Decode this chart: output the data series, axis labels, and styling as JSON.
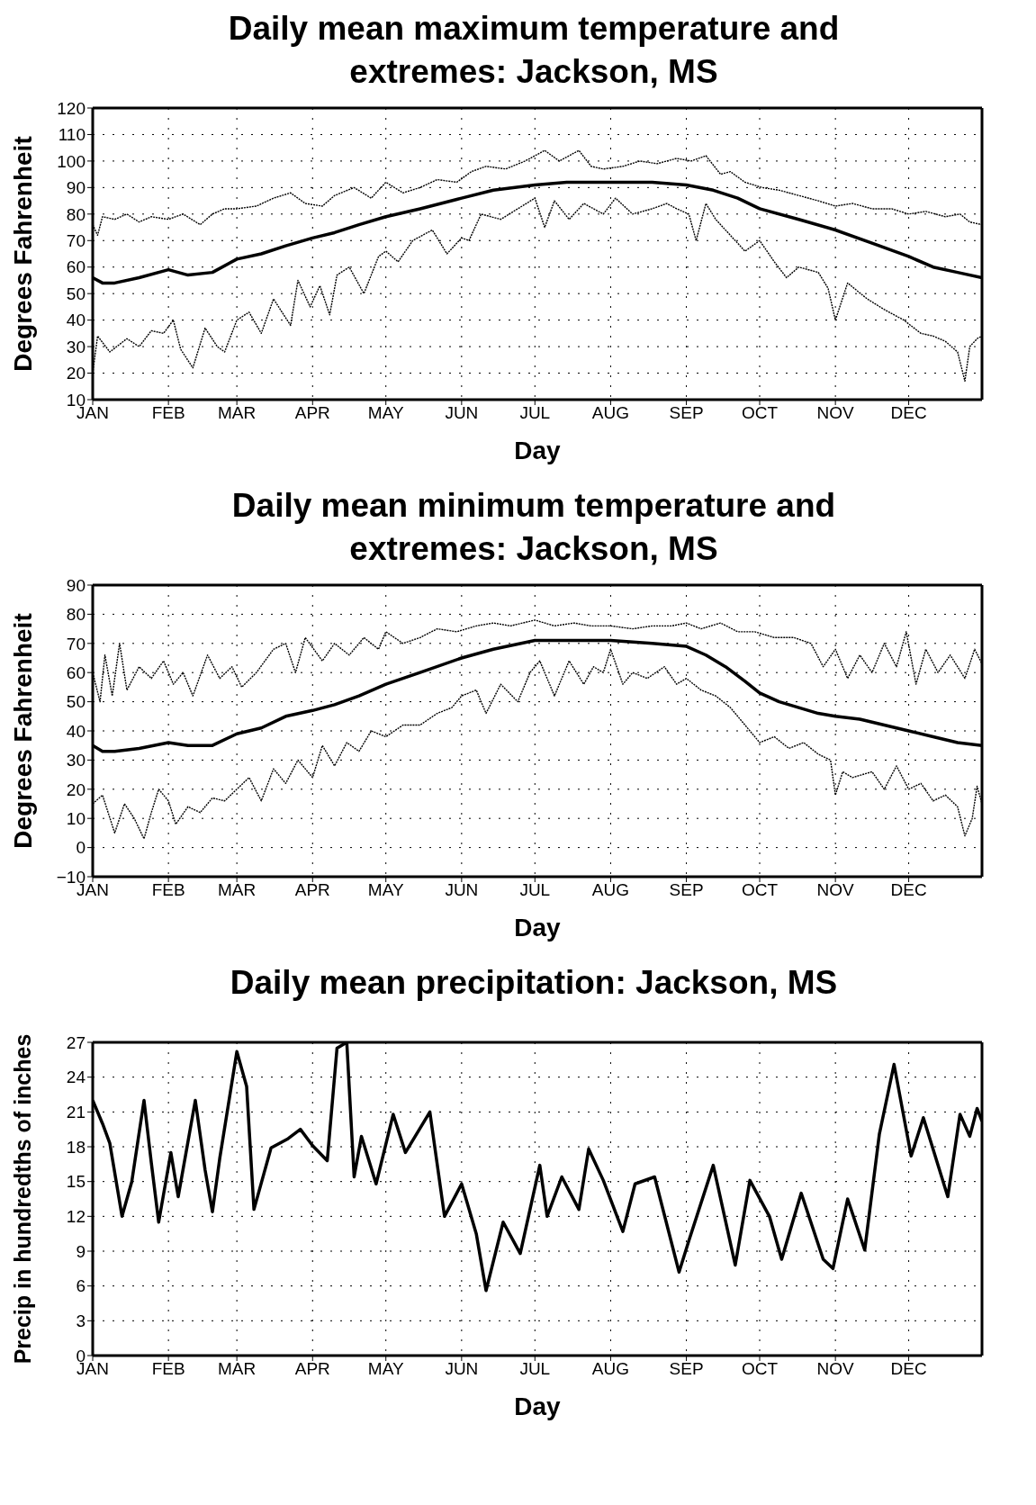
{
  "chart_data": [
    {
      "type": "line",
      "title": "Daily mean maximum temperature and extremes: Jackson, MS",
      "xlabel": "Day",
      "ylabel": "Degrees Fahrenheit",
      "xlim": [
        "--01-01",
        "--12-31"
      ],
      "ylim": [
        10,
        120
      ],
      "grid": true,
      "xticks": [
        {
          "value": "--01-01",
          "label": "JAN"
        },
        {
          "value": "--02-01",
          "label": "FEB"
        },
        {
          "value": "--03-01",
          "label": "MAR"
        },
        {
          "value": "--04-01",
          "label": "APR"
        },
        {
          "value": "--05-01",
          "label": "MAY"
        },
        {
          "value": "--06-01",
          "label": "JUN"
        },
        {
          "value": "--07-01",
          "label": "JUL"
        },
        {
          "value": "--08-01",
          "label": "AUG"
        },
        {
          "value": "--09-01",
          "label": "SEP"
        },
        {
          "value": "--10-01",
          "label": "OCT"
        },
        {
          "value": "--11-01",
          "label": "NOV"
        },
        {
          "value": "--12-01",
          "label": "DEC"
        }
      ],
      "yticks": [
        10,
        20,
        30,
        40,
        50,
        60,
        70,
        80,
        90,
        100,
        110,
        120
      ],
      "series": [
        {
          "color": "#000000",
          "line_style": "dotted",
          "x": [
            "--01-01",
            "--01-03",
            "--01-05",
            "--01-10",
            "--01-15",
            "--01-20",
            "--01-25",
            "--02-01",
            "--02-07",
            "--02-14",
            "--02-19",
            "--02-24",
            "--03-01",
            "--03-09",
            "--03-16",
            "--03-23",
            "--03-29",
            "--04-05",
            "--04-10",
            "--04-18",
            "--04-25",
            "--05-01",
            "--05-08",
            "--05-15",
            "--05-22",
            "--05-30",
            "--06-05",
            "--06-11",
            "--06-19",
            "--06-27",
            "--07-01",
            "--07-05",
            "--07-11",
            "--07-19",
            "--07-24",
            "--07-29",
            "--08-06",
            "--08-13",
            "--08-20",
            "--08-28",
            "--09-03",
            "--09-09",
            "--09-15",
            "--09-19",
            "--09-25",
            "--10-02",
            "--10-09",
            "--10-17",
            "--10-25",
            "--11-01",
            "--11-08",
            "--11-16",
            "--11-24",
            "--12-01",
            "--12-08",
            "--12-16",
            "--12-22",
            "--12-26",
            "--12-31"
          ],
          "values": [
            76,
            72,
            79,
            78,
            80,
            77,
            79,
            78,
            80,
            76,
            80,
            82,
            82,
            83,
            86,
            88,
            84,
            83,
            87,
            90,
            86,
            92,
            88,
            90,
            93,
            92,
            96,
            98,
            97,
            100,
            102,
            104,
            100,
            104,
            98,
            97,
            98,
            100,
            99,
            101,
            100,
            102,
            95,
            96,
            92,
            90,
            89,
            87,
            85,
            83,
            84,
            82,
            82,
            80,
            81,
            79,
            80,
            77,
            76
          ]
        },
        {
          "color": "#000000",
          "line_style": "solid",
          "x": [
            "--01-01",
            "--01-05",
            "--01-10",
            "--01-20",
            "--02-01",
            "--02-09",
            "--02-19",
            "--03-01",
            "--03-11",
            "--03-21",
            "--04-01",
            "--04-10",
            "--04-20",
            "--05-01",
            "--05-15",
            "--06-01",
            "--06-14",
            "--07-01",
            "--07-14",
            "--08-01",
            "--08-18",
            "--09-01",
            "--09-12",
            "--09-22",
            "--10-01",
            "--10-17",
            "--11-01",
            "--11-16",
            "--12-01",
            "--12-11",
            "--12-21",
            "--12-31"
          ],
          "values": [
            56,
            54,
            54,
            56,
            59,
            57,
            58,
            63,
            65,
            68,
            71,
            73,
            76,
            79,
            82,
            86,
            89,
            91,
            92,
            92,
            92,
            91,
            89,
            86,
            82,
            78,
            74,
            69,
            64,
            60,
            58,
            56
          ]
        },
        {
          "color": "#000000",
          "line_style": "dotted",
          "x": [
            "--01-01",
            "--01-03",
            "--01-08",
            "--01-15",
            "--01-20",
            "--01-25",
            "--01-30",
            "--02-03",
            "--02-06",
            "--02-11",
            "--02-16",
            "--02-21",
            "--02-24",
            "--03-01",
            "--03-06",
            "--03-11",
            "--03-16",
            "--03-23",
            "--03-26",
            "--03-31",
            "--04-04",
            "--04-08",
            "--04-11",
            "--04-16",
            "--04-22",
            "--04-28",
            "--05-01",
            "--05-06",
            "--05-12",
            "--05-20",
            "--05-26",
            "--06-01",
            "--06-04",
            "--06-09",
            "--06-17",
            "--06-24",
            "--07-01",
            "--07-05",
            "--07-09",
            "--07-15",
            "--07-21",
            "--07-29",
            "--08-03",
            "--08-10",
            "--08-18",
            "--08-24",
            "--08-28",
            "--09-02",
            "--09-05",
            "--09-09",
            "--09-13",
            "--09-19",
            "--09-25",
            "--10-01",
            "--10-07",
            "--10-12",
            "--10-17",
            "--10-25",
            "--10-29",
            "--11-01",
            "--11-06",
            "--11-14",
            "--11-21",
            "--11-29",
            "--12-06",
            "--12-11",
            "--12-16",
            "--12-21",
            "--12-24",
            "--12-26",
            "--12-29",
            "--12-31"
          ],
          "values": [
            20,
            34,
            28,
            33,
            30,
            36,
            35,
            40,
            29,
            22,
            37,
            30,
            28,
            40,
            43,
            35,
            48,
            38,
            55,
            45,
            53,
            42,
            57,
            60,
            50,
            64,
            66,
            62,
            70,
            74,
            65,
            71,
            70,
            80,
            78,
            82,
            86,
            75,
            85,
            78,
            84,
            80,
            86,
            80,
            82,
            84,
            82,
            80,
            70,
            84,
            78,
            72,
            66,
            70,
            62,
            56,
            60,
            58,
            52,
            40,
            54,
            48,
            44,
            40,
            35,
            34,
            32,
            28,
            17,
            30,
            33,
            34
          ]
        }
      ]
    },
    {
      "type": "line",
      "title": "Daily mean minimum temperature and extremes: Jackson, MS",
      "xlabel": "Day",
      "ylabel": "Degrees Fahrenheit",
      "xlim": [
        "--01-01",
        "--12-31"
      ],
      "ylim": [
        -10,
        90
      ],
      "grid": true,
      "xticks": [
        {
          "value": "--01-01",
          "label": "JAN"
        },
        {
          "value": "--02-01",
          "label": "FEB"
        },
        {
          "value": "--03-01",
          "label": "MAR"
        },
        {
          "value": "--04-01",
          "label": "APR"
        },
        {
          "value": "--05-01",
          "label": "MAY"
        },
        {
          "value": "--06-01",
          "label": "JUN"
        },
        {
          "value": "--07-01",
          "label": "JUL"
        },
        {
          "value": "--08-01",
          "label": "AUG"
        },
        {
          "value": "--09-01",
          "label": "SEP"
        },
        {
          "value": "--10-01",
          "label": "OCT"
        },
        {
          "value": "--11-01",
          "label": "NOV"
        },
        {
          "value": "--12-01",
          "label": "DEC"
        }
      ],
      "yticks": [
        {
          "value": -10,
          "label": "−10"
        },
        0,
        10,
        20,
        30,
        40,
        50,
        60,
        70,
        80,
        90
      ],
      "series": [
        {
          "color": "#000000",
          "line_style": "dotted",
          "x": [
            "--01-01",
            "--01-04",
            "--01-06",
            "--01-09",
            "--01-12",
            "--01-15",
            "--01-20",
            "--01-25",
            "--01-30",
            "--02-03",
            "--02-07",
            "--02-11",
            "--02-17",
            "--02-22",
            "--02-27",
            "--03-03",
            "--03-09",
            "--03-16",
            "--03-21",
            "--03-25",
            "--03-29",
            "--04-05",
            "--04-10",
            "--04-16",
            "--04-22",
            "--04-28",
            "--05-01",
            "--05-08",
            "--05-15",
            "--05-22",
            "--05-30",
            "--06-07",
            "--06-14",
            "--06-21",
            "--07-01",
            "--07-09",
            "--07-17",
            "--07-24",
            "--08-01",
            "--08-10",
            "--08-18",
            "--08-26",
            "--09-01",
            "--09-07",
            "--09-15",
            "--09-22",
            "--09-29",
            "--10-07",
            "--10-15",
            "--10-22",
            "--10-27",
            "--11-01",
            "--11-06",
            "--11-11",
            "--11-16",
            "--11-21",
            "--11-26",
            "--11-30",
            "--12-04",
            "--12-08",
            "--12-13",
            "--12-18",
            "--12-24",
            "--12-28",
            "--12-31"
          ],
          "values": [
            60,
            50,
            66,
            52,
            70,
            54,
            62,
            58,
            64,
            56,
            60,
            52,
            66,
            58,
            62,
            55,
            60,
            68,
            70,
            60,
            72,
            64,
            70,
            66,
            72,
            68,
            74,
            70,
            72,
            75,
            74,
            76,
            77,
            76,
            78,
            76,
            77,
            76,
            76,
            75,
            76,
            76,
            77,
            75,
            77,
            74,
            74,
            72,
            72,
            70,
            62,
            68,
            58,
            66,
            60,
            70,
            62,
            74,
            56,
            68,
            60,
            66,
            58,
            68,
            63
          ]
        },
        {
          "color": "#000000",
          "line_style": "solid",
          "x": [
            "--01-01",
            "--01-05",
            "--01-10",
            "--01-20",
            "--02-01",
            "--02-09",
            "--02-19",
            "--03-01",
            "--03-11",
            "--03-21",
            "--04-01",
            "--04-10",
            "--04-20",
            "--05-01",
            "--05-15",
            "--06-01",
            "--06-14",
            "--07-01",
            "--07-14",
            "--08-01",
            "--08-18",
            "--09-01",
            "--09-09",
            "--09-17",
            "--09-25",
            "--10-01",
            "--10-09",
            "--10-17",
            "--10-25",
            "--11-01",
            "--11-11",
            "--11-21",
            "--12-01",
            "--12-11",
            "--12-21",
            "--12-31"
          ],
          "values": [
            35,
            33,
            33,
            34,
            36,
            35,
            35,
            39,
            41,
            45,
            47,
            49,
            52,
            56,
            60,
            65,
            68,
            71,
            71,
            71,
            70,
            69,
            66,
            62,
            57,
            53,
            50,
            48,
            46,
            45,
            44,
            42,
            40,
            38,
            36,
            35
          ]
        },
        {
          "color": "#000000",
          "line_style": "dotted",
          "x": [
            "--01-01",
            "--01-05",
            "--01-10",
            "--01-14",
            "--01-18",
            "--01-22",
            "--01-25",
            "--01-28",
            "--02-01",
            "--02-04",
            "--02-09",
            "--02-14",
            "--02-19",
            "--02-24",
            "--03-01",
            "--03-06",
            "--03-11",
            "--03-16",
            "--03-21",
            "--03-26",
            "--04-01",
            "--04-05",
            "--04-10",
            "--04-15",
            "--04-20",
            "--04-25",
            "--05-01",
            "--05-08",
            "--05-15",
            "--05-22",
            "--05-28",
            "--06-01",
            "--06-07",
            "--06-11",
            "--06-17",
            "--06-24",
            "--06-29",
            "--07-03",
            "--07-09",
            "--07-15",
            "--07-21",
            "--07-25",
            "--07-29",
            "--08-01",
            "--08-06",
            "--08-10",
            "--08-16",
            "--08-23",
            "--08-28",
            "--09-01",
            "--09-07",
            "--09-13",
            "--09-19",
            "--09-23",
            "--09-27",
            "--10-01",
            "--10-07",
            "--10-13",
            "--10-19",
            "--10-25",
            "--10-30",
            "--11-01",
            "--11-04",
            "--11-08",
            "--11-16",
            "--11-21",
            "--11-26",
            "--12-01",
            "--12-06",
            "--12-11",
            "--12-16",
            "--12-21",
            "--12-24",
            "--12-27",
            "--12-29",
            "--12-31"
          ],
          "values": [
            15,
            18,
            5,
            15,
            10,
            3,
            12,
            20,
            16,
            8,
            14,
            12,
            17,
            16,
            20,
            24,
            16,
            27,
            22,
            30,
            24,
            35,
            28,
            36,
            33,
            40,
            38,
            42,
            42,
            46,
            48,
            52,
            54,
            46,
            56,
            50,
            60,
            64,
            52,
            64,
            56,
            62,
            60,
            68,
            56,
            60,
            58,
            62,
            56,
            58,
            54,
            52,
            48,
            44,
            40,
            36,
            38,
            34,
            36,
            32,
            30,
            18,
            26,
            24,
            26,
            20,
            28,
            20,
            22,
            16,
            18,
            14,
            4,
            10,
            21,
            15
          ]
        }
      ]
    },
    {
      "type": "line",
      "title": "Daily mean precipitation: Jackson, MS",
      "xlabel": "Day",
      "ylabel": "Precip in hundredths of inches",
      "xlim": [
        "--01-01",
        "--12-31"
      ],
      "ylim": [
        0,
        27
      ],
      "grid": true,
      "xticks": [
        {
          "value": "--01-01",
          "label": "JAN"
        },
        {
          "value": "--02-01",
          "label": "FEB"
        },
        {
          "value": "--03-01",
          "label": "MAR"
        },
        {
          "value": "--04-01",
          "label": "APR"
        },
        {
          "value": "--05-01",
          "label": "MAY"
        },
        {
          "value": "--06-01",
          "label": "JUN"
        },
        {
          "value": "--07-01",
          "label": "JUL"
        },
        {
          "value": "--08-01",
          "label": "AUG"
        },
        {
          "value": "--09-01",
          "label": "SEP"
        },
        {
          "value": "--10-01",
          "label": "OCT"
        },
        {
          "value": "--11-01",
          "label": "NOV"
        },
        {
          "value": "--12-01",
          "label": "DEC"
        }
      ],
      "yticks": [
        0,
        3,
        6,
        9,
        12,
        15,
        18,
        21,
        24,
        27
      ],
      "series": [
        {
          "color": "#000000",
          "line_style": "solid",
          "x": [
            "--01-01",
            "--01-05",
            "--01-08",
            "--01-13",
            "--01-17",
            "--01-22",
            "--01-25",
            "--01-28",
            "--02-02",
            "--02-05",
            "--02-12",
            "--02-16",
            "--02-19",
            "--02-22",
            "--03-01",
            "--03-05",
            "--03-08",
            "--03-15",
            "--03-22",
            "--03-27",
            "--04-01",
            "--04-07",
            "--04-11",
            "--04-15",
            "--04-18",
            "--04-21",
            "--04-27",
            "--05-04",
            "--05-09",
            "--05-19",
            "--05-25",
            "--06-01",
            "--06-07",
            "--06-11",
            "--06-18",
            "--06-25",
            "--07-03",
            "--07-06",
            "--07-12",
            "--07-19",
            "--07-23",
            "--07-29",
            "--08-06",
            "--08-11",
            "--08-19",
            "--08-29",
            "--09-02",
            "--09-12",
            "--09-21",
            "--09-27",
            "--10-05",
            "--10-10",
            "--10-18",
            "--10-27",
            "--10-31",
            "--11-06",
            "--11-13",
            "--11-19",
            "--11-25",
            "--12-02",
            "--12-07",
            "--12-17",
            "--12-22",
            "--12-26",
            "--12-29",
            "--12-31"
          ],
          "values": [
            22,
            20,
            18.3,
            12,
            15,
            22,
            16.6,
            11.5,
            17.5,
            13.7,
            22,
            16,
            12.4,
            17,
            26.2,
            23.2,
            12.6,
            17.9,
            18.7,
            19.5,
            18.1,
            16.8,
            26.5,
            27,
            15.4,
            18.9,
            14.8,
            20.8,
            17.5,
            21,
            12,
            14.8,
            10.5,
            5.6,
            11.5,
            8.8,
            16.4,
            12,
            15.4,
            12.6,
            17.8,
            15.1,
            10.7,
            14.8,
            15.4,
            7.2,
            9.9,
            16.4,
            7.8,
            15.1,
            12,
            8.3,
            14,
            8.3,
            7.5,
            13.5,
            9.1,
            19.1,
            25.1,
            17.2,
            20.5,
            13.7,
            20.8,
            18.9,
            21.3,
            20.2
          ]
        }
      ]
    }
  ]
}
